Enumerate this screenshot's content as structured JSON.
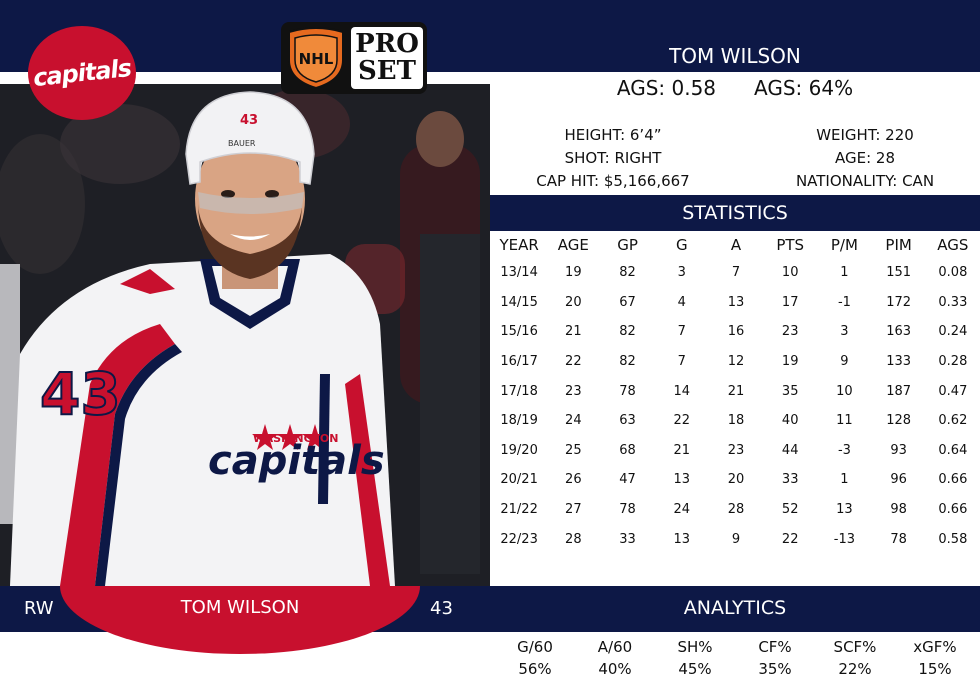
{
  "brand": {
    "shield_text": "NHL",
    "line1": "PRO",
    "line2": "SET"
  },
  "team": {
    "logo_text": "capitals",
    "jersey_wordmark": "capitals",
    "jersey_city": "WASHINGTON",
    "jersey_number": "43",
    "helmet_number": "43",
    "helmet_brand": "BAUER"
  },
  "player": {
    "name": "TOM WILSON",
    "ags_value": "AGS: 0.58",
    "ags_percent": "AGS: 64%",
    "height": "HEIGHT: 6’4”",
    "shot": "SHOT: RIGHT",
    "cap_hit": "CAP HIT: $5,166,667",
    "weight": "WEIGHT: 220",
    "age": "AGE: 28",
    "nationality": "NATIONALITY: CAN",
    "position": "RW",
    "number": "43"
  },
  "stats": {
    "title": "STATISTICS",
    "headers": [
      "YEAR",
      "AGE",
      "GP",
      "G",
      "A",
      "PTS",
      "P/M",
      "PIM",
      "AGS"
    ],
    "rows": [
      [
        "13/14",
        "19",
        "82",
        "3",
        "7",
        "10",
        "1",
        "151",
        "0.08"
      ],
      [
        "14/15",
        "20",
        "67",
        "4",
        "13",
        "17",
        "-1",
        "172",
        "0.33"
      ],
      [
        "15/16",
        "21",
        "82",
        "7",
        "16",
        "23",
        "3",
        "163",
        "0.24"
      ],
      [
        "16/17",
        "22",
        "82",
        "7",
        "12",
        "19",
        "9",
        "133",
        "0.28"
      ],
      [
        "17/18",
        "23",
        "78",
        "14",
        "21",
        "35",
        "10",
        "187",
        "0.47"
      ],
      [
        "18/19",
        "24",
        "63",
        "22",
        "18",
        "40",
        "11",
        "128",
        "0.62"
      ],
      [
        "19/20",
        "25",
        "68",
        "21",
        "23",
        "44",
        "-3",
        "93",
        "0.64"
      ],
      [
        "20/21",
        "26",
        "47",
        "13",
        "20",
        "33",
        "1",
        "96",
        "0.66"
      ],
      [
        "21/22",
        "27",
        "78",
        "24",
        "28",
        "52",
        "13",
        "98",
        "0.66"
      ],
      [
        "22/23",
        "28",
        "33",
        "13",
        "9",
        "22",
        "-13",
        "78",
        "0.58"
      ]
    ]
  },
  "analytics": {
    "title": "ANALYTICS",
    "items": [
      {
        "label": "G/60",
        "value": "56%"
      },
      {
        "label": "A/60",
        "value": "40%"
      },
      {
        "label": "SH%",
        "value": "45%"
      },
      {
        "label": "CF%",
        "value": "35%"
      },
      {
        "label": "SCF%",
        "value": "22%"
      },
      {
        "label": "xGF%",
        "value": "15%"
      }
    ]
  },
  "colors": {
    "navy": "#0d1846",
    "red": "#c8102e",
    "white": "#ffffff"
  }
}
